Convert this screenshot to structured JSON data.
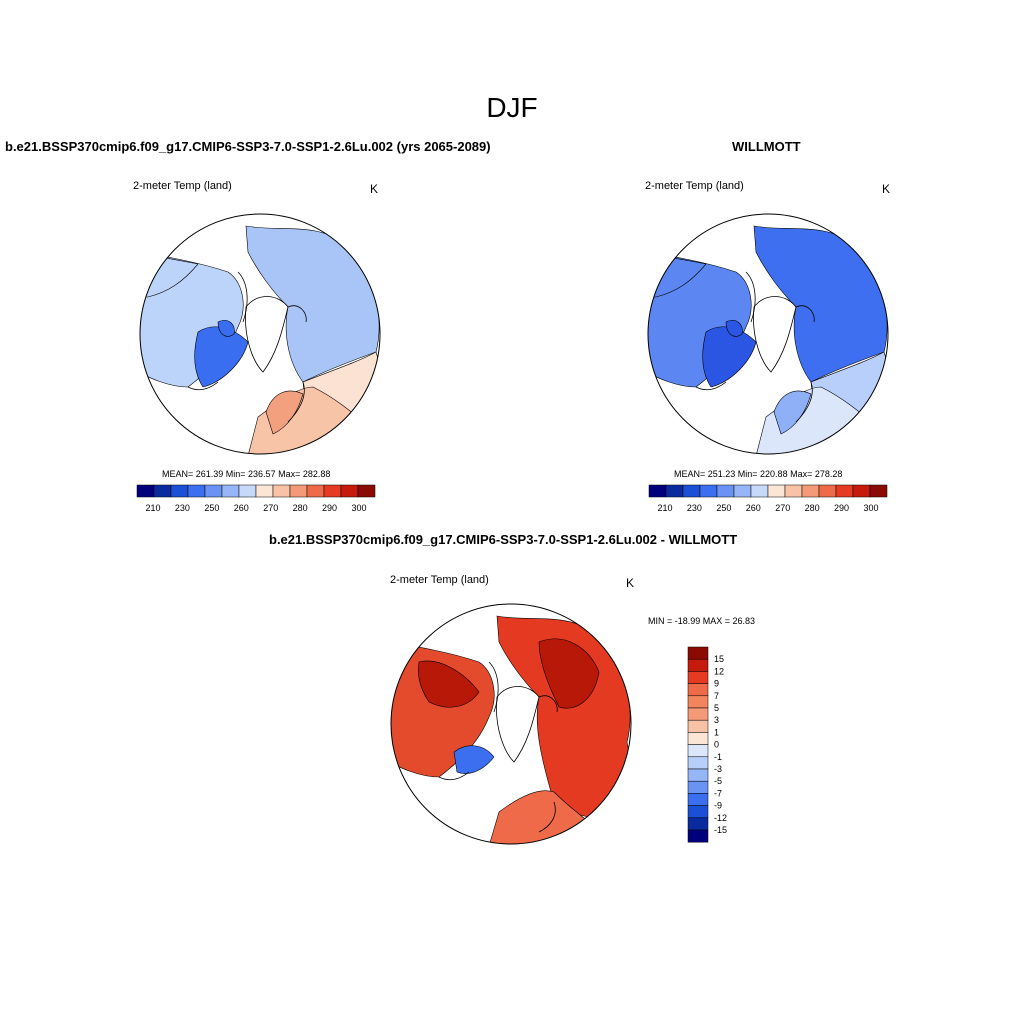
{
  "figure": {
    "title": "DJF",
    "top_left": {
      "title": "b.e21.BSSP370cmip6.f09_g17.CMIP6-SSP3-7.0-SSP1-2.6Lu.002 (yrs 2065-2089)",
      "variable": "2-meter Temp (land)",
      "units": "K",
      "stats": "MEAN= 261.39  Min= 236.57  Max= 282.88"
    },
    "top_right": {
      "title": "WILLMOTT",
      "variable": "2-meter Temp (land)",
      "units": "K",
      "stats": "MEAN= 251.23  Min= 220.88  Max= 278.28"
    },
    "bottom": {
      "title": "b.e21.BSSP370cmip6.f09_g17.CMIP6-SSP3-7.0-SSP1-2.6Lu.002 - WILLMOTT",
      "variable": "2-meter Temp (land)",
      "units": "K",
      "stats": "MIN = -18.99 MAX =  26.83"
    }
  },
  "colorbar_abs": {
    "tick_labels": [
      "210",
      "230",
      "250",
      "260",
      "270",
      "280",
      "290",
      "300"
    ],
    "colors": [
      "#00007f",
      "#0a2a9f",
      "#1a4fd6",
      "#3b6ff0",
      "#6a93f4",
      "#97b6f7",
      "#c6d9fb",
      "#fbe6d6",
      "#f8c2a6",
      "#f49a78",
      "#ee6a48",
      "#e63a22",
      "#c61a0c",
      "#8c0a04"
    ]
  },
  "colorbar_diff": {
    "tick_labels": [
      "15",
      "12",
      "9",
      "7",
      "5",
      "3",
      "1",
      "0",
      "-1",
      "-3",
      "-5",
      "-7",
      "-9",
      "-12",
      "-15"
    ],
    "colors": [
      "#8c0a04",
      "#c61a0c",
      "#e63a22",
      "#ee6a48",
      "#f2845e",
      "#f49a78",
      "#f8c2a6",
      "#fbe6d6",
      "#dbe8fb",
      "#b8cffa",
      "#97b6f7",
      "#6a93f4",
      "#3b6ff0",
      "#1a4fd6",
      "#0a2a9f",
      "#00007f"
    ]
  },
  "map_colors": {
    "left": {
      "eurasia": "#a9c5f8",
      "north_america": "#bcd3fa",
      "canada_core": "#3a6ef0",
      "europe": "#f7c4a8",
      "asia_south": "#fbe2d2",
      "scandinavia": "#f3a07e"
    },
    "right": {
      "eurasia": "#3d6ff0",
      "north_america": "#5c86f2",
      "canada_core": "#2a56e3",
      "europe": "#dbe6fb",
      "asia_south": "#b7cffa",
      "scandinavia": "#8fb0f6"
    },
    "diff": {
      "eurasia": "#e53a22",
      "north_america": "#e44a2c",
      "siberia_core": "#b81808",
      "europe": "#ee6a48",
      "greenland_anom": "#3b6ff0"
    }
  }
}
